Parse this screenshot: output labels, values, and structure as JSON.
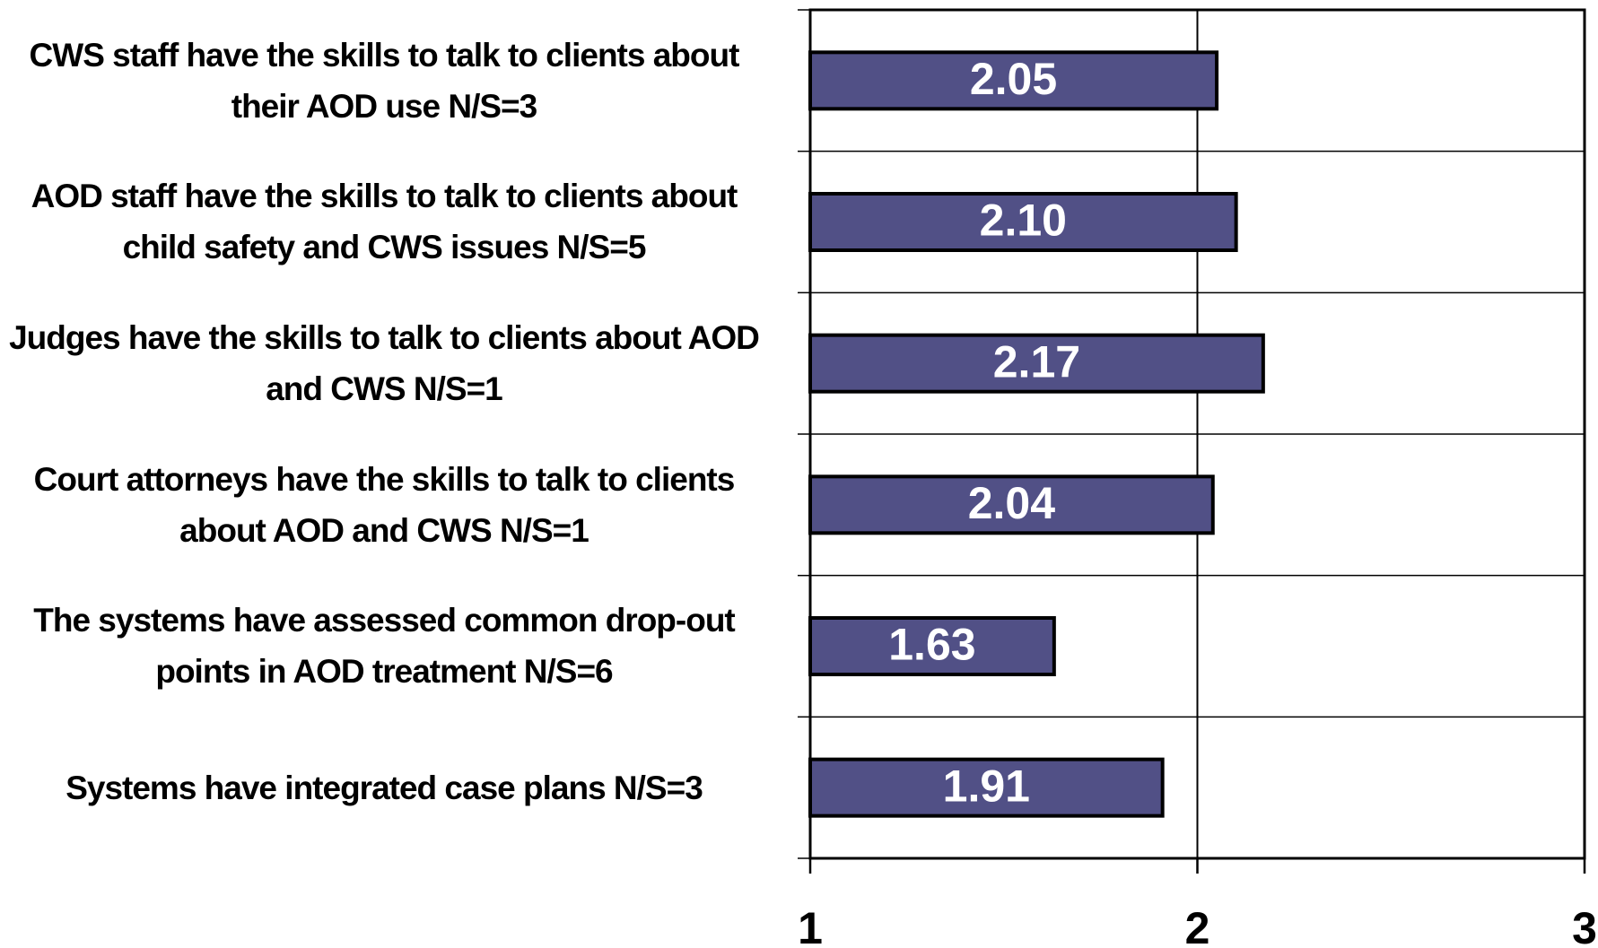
{
  "chart_data": {
    "type": "barh",
    "categories": [
      "CWS staff have the skills to talk to clients about their AOD use N/S=3",
      "AOD staff have the skills to talk to clients about child safety and CWS issues N/S=5",
      "Judges have the skills to talk to clients about AOD and CWS N/S=1",
      "Court attorneys have the skills to talk to clients about AOD and CWS N/S=1",
      "The systems have assessed common drop-out points in AOD treatment N/S=6",
      "Systems have integrated case plans N/S=3"
    ],
    "values": [
      2.05,
      2.1,
      2.17,
      2.04,
      1.63,
      1.91
    ],
    "value_labels": [
      "2.05",
      "2.10",
      "2.17",
      "2.04",
      "1.63",
      "1.91"
    ],
    "color": "#515086",
    "xlim": [
      1,
      3
    ],
    "xticks": [
      1,
      2,
      3
    ],
    "grid": true
  }
}
